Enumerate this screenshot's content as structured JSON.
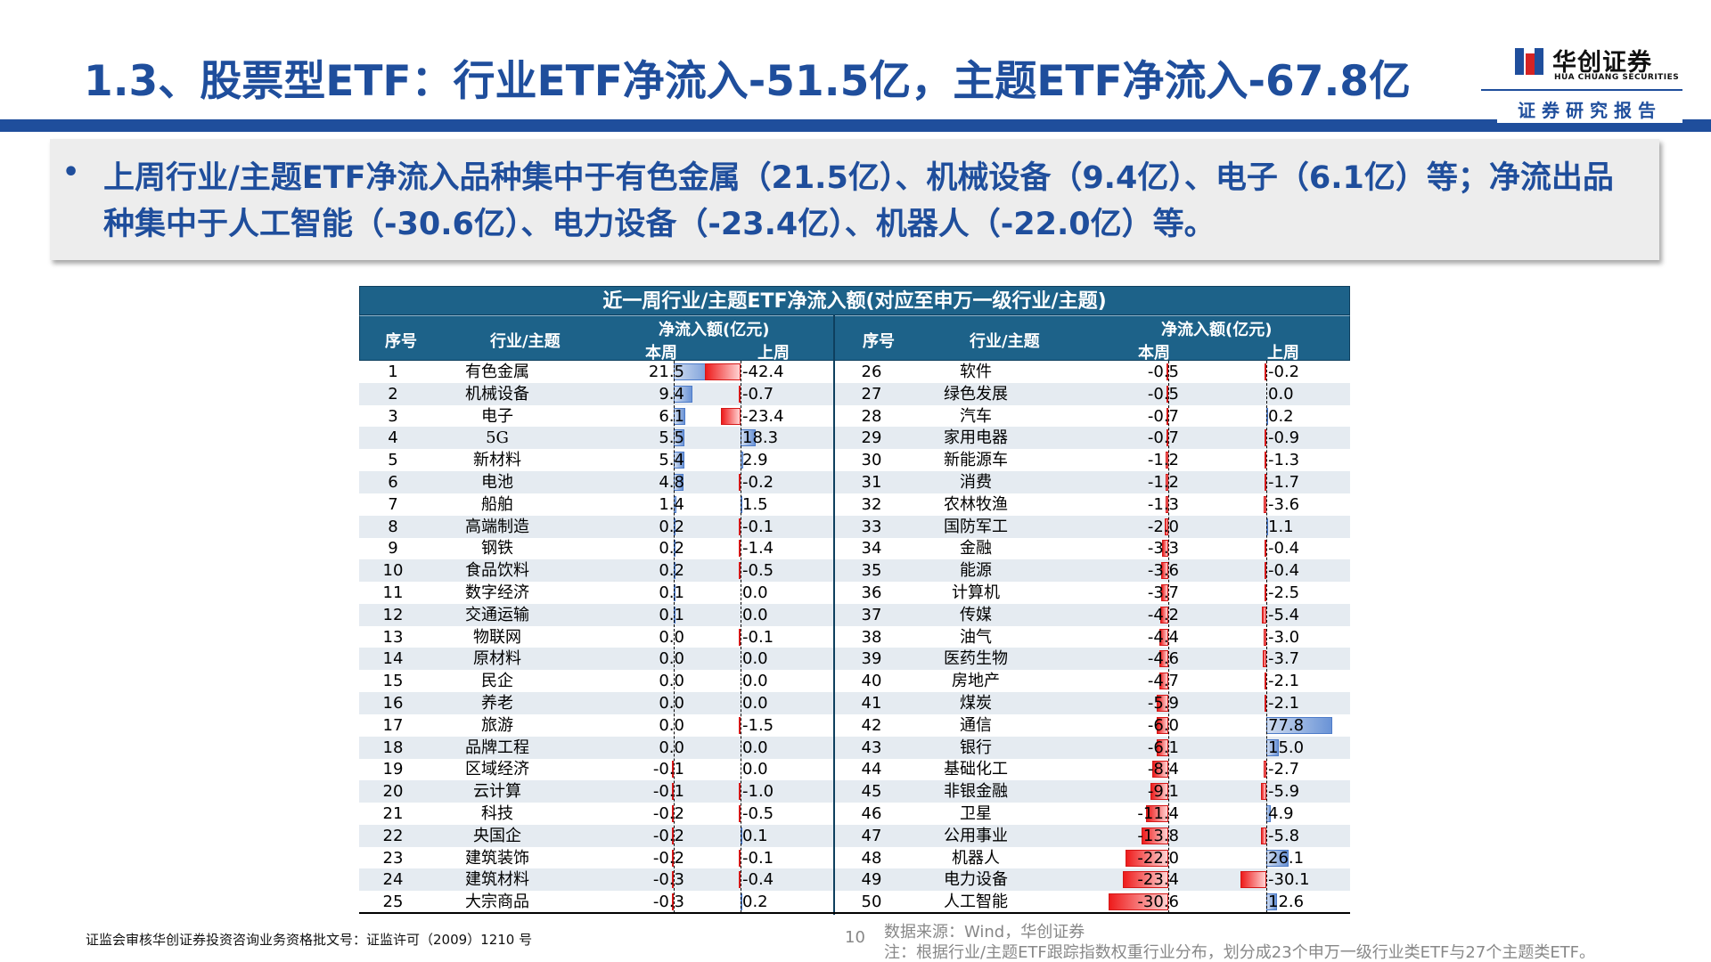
{
  "title": "1.3、股票型ETF：行业ETF净流入-51.5亿，主题ETF净流入-67.8亿",
  "logo": {
    "cn": "华创证券",
    "en": "HUA CHUANG SECURITIES"
  },
  "subtitle_tag": "证券研究报告",
  "summary": {
    "bullet": "•",
    "text": "上周行业/主题ETF净流入品种集中于有色金属（21.5亿）、机械设备（9.4亿）、电子（6.1亿）等；净流出品种集中于人工智能（-30.6亿）、电力设备（-23.4亿）、机器人（-22.0亿）等。"
  },
  "table": {
    "title": "近一周行业/主题ETF净流入额(对应至申万一级行业/主题)",
    "headers": {
      "idx": "序号",
      "name": "行业/主题",
      "flow": "净流入额(亿元)",
      "this_week": "本周",
      "last_week": "上周"
    }
  },
  "colors": {
    "brand": "#1f4e9c",
    "header_bg": "#1d6289",
    "bar_positive": "#6a93d6",
    "bar_negative": "#ee1c1c",
    "row_alt": "#e5ebf1"
  },
  "chart_data": {
    "type": "table",
    "title": "近一周行业/主题ETF净流入额(对应至申万一级行业/主题)",
    "columns": [
      "序号",
      "行业/主题",
      "本周",
      "上周"
    ],
    "unit": "亿元",
    "left": [
      {
        "idx": "1",
        "name": "有色金属",
        "this_week": "21.5",
        "last_week": "-42.4"
      },
      {
        "idx": "2",
        "name": "机械设备",
        "this_week": "9.4",
        "last_week": "-0.7"
      },
      {
        "idx": "3",
        "name": "电子",
        "this_week": "6.1",
        "last_week": "-23.4"
      },
      {
        "idx": "4",
        "name": "5G",
        "this_week": "5.5",
        "last_week": "18.3"
      },
      {
        "idx": "5",
        "name": "新材料",
        "this_week": "5.4",
        "last_week": "2.9"
      },
      {
        "idx": "6",
        "name": "电池",
        "this_week": "4.8",
        "last_week": "-0.2"
      },
      {
        "idx": "7",
        "name": "船舶",
        "this_week": "1.4",
        "last_week": "1.5"
      },
      {
        "idx": "8",
        "name": "高端制造",
        "this_week": "0.2",
        "last_week": "-0.1"
      },
      {
        "idx": "9",
        "name": "钢铁",
        "this_week": "0.2",
        "last_week": "-1.4"
      },
      {
        "idx": "10",
        "name": "食品饮料",
        "this_week": "0.2",
        "last_week": "-0.5"
      },
      {
        "idx": "11",
        "name": "数字经济",
        "this_week": "0.1",
        "last_week": "0.0"
      },
      {
        "idx": "12",
        "name": "交通运输",
        "this_week": "0.1",
        "last_week": "0.0"
      },
      {
        "idx": "13",
        "name": "物联网",
        "this_week": "0.0",
        "last_week": "-0.1"
      },
      {
        "idx": "14",
        "name": "原材料",
        "this_week": "0.0",
        "last_week": "0.0"
      },
      {
        "idx": "15",
        "name": "民企",
        "this_week": "0.0",
        "last_week": "0.0"
      },
      {
        "idx": "16",
        "name": "养老",
        "this_week": "0.0",
        "last_week": "0.0"
      },
      {
        "idx": "17",
        "name": "旅游",
        "this_week": "0.0",
        "last_week": "-1.5"
      },
      {
        "idx": "18",
        "name": "品牌工程",
        "this_week": "0.0",
        "last_week": "0.0"
      },
      {
        "idx": "19",
        "name": "区域经济",
        "this_week": "-0.1",
        "last_week": "0.0"
      },
      {
        "idx": "20",
        "name": "云计算",
        "this_week": "-0.1",
        "last_week": "-1.0"
      },
      {
        "idx": "21",
        "name": "科技",
        "this_week": "-0.2",
        "last_week": "-0.5"
      },
      {
        "idx": "22",
        "name": "央国企",
        "this_week": "-0.2",
        "last_week": "0.1"
      },
      {
        "idx": "23",
        "name": "建筑装饰",
        "this_week": "-0.2",
        "last_week": "-0.1"
      },
      {
        "idx": "24",
        "name": "建筑材料",
        "this_week": "-0.3",
        "last_week": "-0.4"
      },
      {
        "idx": "25",
        "name": "大宗商品",
        "this_week": "-0.3",
        "last_week": "0.2"
      }
    ],
    "right": [
      {
        "idx": "26",
        "name": "软件",
        "this_week": "-0.5",
        "last_week": "-0.2"
      },
      {
        "idx": "27",
        "name": "绿色发展",
        "this_week": "-0.5",
        "last_week": "0.0"
      },
      {
        "idx": "28",
        "name": "汽车",
        "this_week": "-0.7",
        "last_week": "0.2"
      },
      {
        "idx": "29",
        "name": "家用电器",
        "this_week": "-0.7",
        "last_week": "-0.9"
      },
      {
        "idx": "30",
        "name": "新能源车",
        "this_week": "-1.2",
        "last_week": "-1.3"
      },
      {
        "idx": "31",
        "name": "消费",
        "this_week": "-1.2",
        "last_week": "-1.7"
      },
      {
        "idx": "32",
        "name": "农林牧渔",
        "this_week": "-1.3",
        "last_week": "-3.6"
      },
      {
        "idx": "33",
        "name": "国防军工",
        "this_week": "-2.0",
        "last_week": "1.1"
      },
      {
        "idx": "34",
        "name": "金融",
        "this_week": "-3.3",
        "last_week": "-0.4"
      },
      {
        "idx": "35",
        "name": "能源",
        "this_week": "-3.6",
        "last_week": "-0.4"
      },
      {
        "idx": "36",
        "name": "计算机",
        "this_week": "-3.7",
        "last_week": "-2.5"
      },
      {
        "idx": "37",
        "name": "传媒",
        "this_week": "-4.2",
        "last_week": "-5.4"
      },
      {
        "idx": "38",
        "name": "油气",
        "this_week": "-4.4",
        "last_week": "-3.0"
      },
      {
        "idx": "39",
        "name": "医药生物",
        "this_week": "-4.6",
        "last_week": "-3.7"
      },
      {
        "idx": "40",
        "name": "房地产",
        "this_week": "-4.7",
        "last_week": "-2.1"
      },
      {
        "idx": "41",
        "name": "煤炭",
        "this_week": "-5.9",
        "last_week": "-2.1"
      },
      {
        "idx": "42",
        "name": "通信",
        "this_week": "-6.0",
        "last_week": "77.8"
      },
      {
        "idx": "43",
        "name": "银行",
        "this_week": "-6.1",
        "last_week": "15.0"
      },
      {
        "idx": "44",
        "name": "基础化工",
        "this_week": "-8.4",
        "last_week": "-2.7"
      },
      {
        "idx": "45",
        "name": "非银金融",
        "this_week": "-9.1",
        "last_week": "-5.9"
      },
      {
        "idx": "46",
        "name": "卫星",
        "this_week": "-11.4",
        "last_week": "4.9"
      },
      {
        "idx": "47",
        "name": "公用事业",
        "this_week": "-13.8",
        "last_week": "-5.8"
      },
      {
        "idx": "48",
        "name": "机器人",
        "this_week": "-22.0",
        "last_week": "26.1"
      },
      {
        "idx": "49",
        "name": "电力设备",
        "this_week": "-23.4",
        "last_week": "-30.1"
      },
      {
        "idx": "50",
        "name": "人工智能",
        "this_week": "-30.6",
        "last_week": "12.6"
      }
    ]
  },
  "footer": {
    "license": "证监会审核华创证券投资咨询业务资格批文号：证监许可（2009）1210 号",
    "page": "10",
    "source": "数据来源：Wind，华创证券",
    "note": "注：根据行业/主题ETF跟踪指数权重行业分布，划分成23个申万一级行业类ETF与27个主题类ETF。"
  }
}
